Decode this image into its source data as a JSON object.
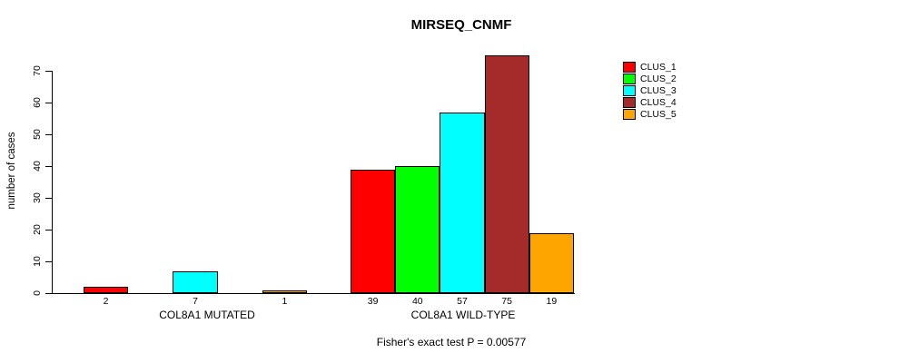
{
  "chart_data": {
    "type": "bar",
    "title": "MIRSEQ_CNMF",
    "ylabel": "number of cases",
    "xlabel": "",
    "ylim": [
      0,
      75
    ],
    "yticks": [
      0,
      10,
      20,
      30,
      40,
      50,
      60,
      70
    ],
    "grid": false,
    "legend_position": "right",
    "categories": [
      "COL8A1 MUTATED",
      "COL8A1 WILD-TYPE"
    ],
    "series": [
      {
        "name": "CLUS_1",
        "color": "#ff0000",
        "values": [
          2,
          39
        ]
      },
      {
        "name": "CLUS_2",
        "color": "#00ff00",
        "values": [
          0,
          40
        ]
      },
      {
        "name": "CLUS_3",
        "color": "#00ffff",
        "values": [
          7,
          57
        ]
      },
      {
        "name": "CLUS_4",
        "color": "#a52a2a",
        "values": [
          0,
          75
        ]
      },
      {
        "name": "CLUS_5",
        "color": "#ffa500",
        "values": [
          1,
          19
        ]
      }
    ],
    "bar_value_labels": [
      [
        "2",
        "",
        "7",
        "",
        "1"
      ],
      [
        "39",
        "40",
        "57",
        "75",
        "19"
      ]
    ],
    "annotation": "Fisher's exact test P = 0.00577"
  }
}
